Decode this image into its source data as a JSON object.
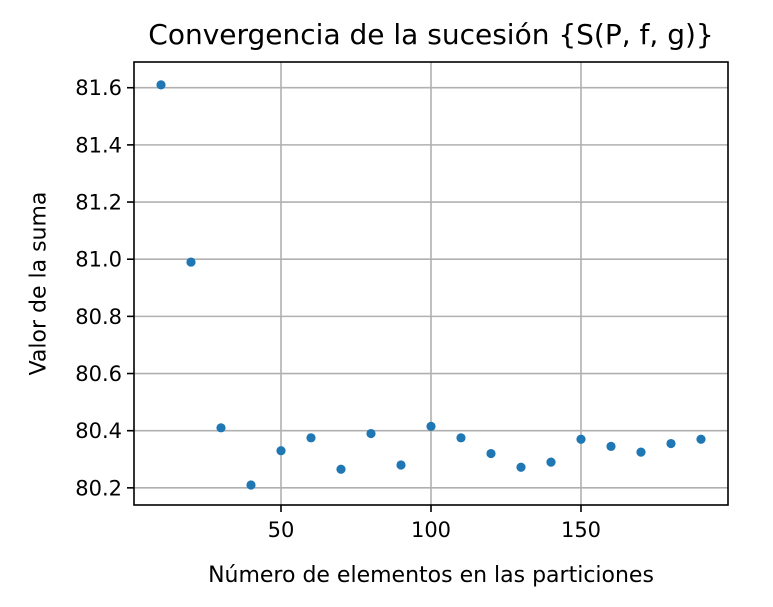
{
  "chart_data": {
    "type": "scatter",
    "title": "Convergencia de la sucesión {S(P, f, g)}",
    "xlabel": "Número de elementos en las particiones",
    "ylabel": "Valor de la suma",
    "xlim": [
      1,
      199
    ],
    "ylim": [
      80.14,
      81.69
    ],
    "xticks": [
      50,
      100,
      150
    ],
    "xtick_labels": [
      "50",
      "100",
      "150"
    ],
    "yticks": [
      80.2,
      80.4,
      80.6,
      80.8,
      81.0,
      81.2,
      81.4,
      81.6
    ],
    "ytick_labels": [
      "80.2",
      "80.4",
      "80.6",
      "80.8",
      "81.0",
      "81.2",
      "81.4",
      "81.6"
    ],
    "grid": true,
    "marker_color": "#1f77b4",
    "points": [
      {
        "x": 10,
        "y": 81.61
      },
      {
        "x": 20,
        "y": 80.99
      },
      {
        "x": 30,
        "y": 80.41
      },
      {
        "x": 40,
        "y": 80.21
      },
      {
        "x": 50,
        "y": 80.33
      },
      {
        "x": 60,
        "y": 80.375
      },
      {
        "x": 70,
        "y": 80.265
      },
      {
        "x": 80,
        "y": 80.39
      },
      {
        "x": 90,
        "y": 80.28
      },
      {
        "x": 100,
        "y": 80.415
      },
      {
        "x": 110,
        "y": 80.375
      },
      {
        "x": 120,
        "y": 80.32
      },
      {
        "x": 130,
        "y": 80.272
      },
      {
        "x": 140,
        "y": 80.29
      },
      {
        "x": 150,
        "y": 80.37
      },
      {
        "x": 160,
        "y": 80.345
      },
      {
        "x": 170,
        "y": 80.325
      },
      {
        "x": 180,
        "y": 80.355
      },
      {
        "x": 190,
        "y": 80.37
      }
    ]
  }
}
